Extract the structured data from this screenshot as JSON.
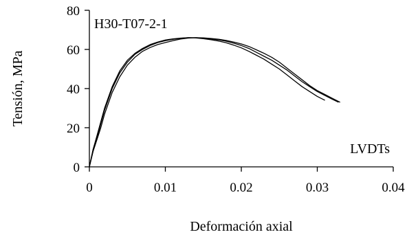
{
  "chart_data": {
    "type": "line",
    "title": "",
    "xlabel": "Deformación axial",
    "ylabel": "Tensión, MPa",
    "xlim": [
      0,
      0.04
    ],
    "ylim": [
      0,
      80
    ],
    "x_ticks": [
      0,
      0.01,
      0.02,
      0.03,
      0.04
    ],
    "x_tick_labels": [
      "0",
      "0.01",
      "0.02",
      "0.03",
      "0.04"
    ],
    "y_ticks": [
      0,
      20,
      40,
      60,
      80
    ],
    "y_tick_labels": [
      "0",
      "20",
      "40",
      "60",
      "80"
    ],
    "grid": false,
    "annotations": [
      {
        "text": "H30-T07-2-1",
        "position": "top-left"
      },
      {
        "text": "LVDTs",
        "position": "bottom-right"
      }
    ],
    "series": [
      {
        "color": "#000000",
        "x": [
          0,
          0.0005,
          0.001,
          0.0015,
          0.002,
          0.003,
          0.004,
          0.005,
          0.006,
          0.007,
          0.008,
          0.009,
          0.01,
          0.011,
          0.012,
          0.013,
          0.014,
          0.015,
          0.016,
          0.017,
          0.018,
          0.019,
          0.02,
          0.021,
          0.022,
          0.023,
          0.024,
          0.025,
          0.026,
          0.027,
          0.028,
          0.029,
          0.03,
          0.031,
          0.032,
          0.033
        ],
        "values": [
          0,
          8,
          14,
          20,
          27,
          38,
          46,
          52,
          56,
          59,
          61,
          62.5,
          63.5,
          64.5,
          65.3,
          65.8,
          66,
          65.9,
          65.6,
          65.2,
          64.6,
          63.8,
          62.8,
          61.5,
          59.8,
          58,
          56,
          53.5,
          50.5,
          47.5,
          44.5,
          41.5,
          39,
          37,
          35,
          33
        ]
      },
      {
        "color": "#000000",
        "x": [
          0,
          0.0005,
          0.001,
          0.0015,
          0.002,
          0.003,
          0.004,
          0.005,
          0.006,
          0.007,
          0.008,
          0.009,
          0.01,
          0.011,
          0.012,
          0.013,
          0.014,
          0.015,
          0.016,
          0.017,
          0.018,
          0.019,
          0.02,
          0.021,
          0.022,
          0.023,
          0.024,
          0.025,
          0.026,
          0.027,
          0.028,
          0.029,
          0.03,
          0.031,
          0.032,
          0.0328
        ],
        "values": [
          0,
          9,
          15,
          22,
          29,
          40,
          48,
          53.5,
          57.5,
          60,
          62,
          63.5,
          64.5,
          65.2,
          65.7,
          66,
          66,
          65.8,
          65.4,
          64.9,
          64.2,
          63.2,
          62,
          60.5,
          58.5,
          56.5,
          54.5,
          52,
          49.5,
          46.5,
          43.5,
          41,
          38.5,
          36.5,
          34.5,
          33
        ]
      },
      {
        "color": "#000000",
        "x": [
          0,
          0.0005,
          0.001,
          0.0015,
          0.002,
          0.003,
          0.004,
          0.005,
          0.006,
          0.007,
          0.008,
          0.009,
          0.01,
          0.011,
          0.012,
          0.013,
          0.014,
          0.015,
          0.016,
          0.017,
          0.018,
          0.019,
          0.02,
          0.021,
          0.022,
          0.023,
          0.024,
          0.025,
          0.026,
          0.027,
          0.028,
          0.029,
          0.03,
          0.031
        ],
        "values": [
          0,
          9,
          16,
          23,
          30,
          41,
          49,
          54.5,
          58,
          60.5,
          62.5,
          63.8,
          64.8,
          65.4,
          65.8,
          66,
          65.9,
          65.5,
          65,
          64.3,
          63.4,
          62.2,
          60.8,
          59,
          57,
          55,
          52.5,
          50,
          47,
          44,
          41,
          38.5,
          36,
          34
        ]
      }
    ]
  }
}
